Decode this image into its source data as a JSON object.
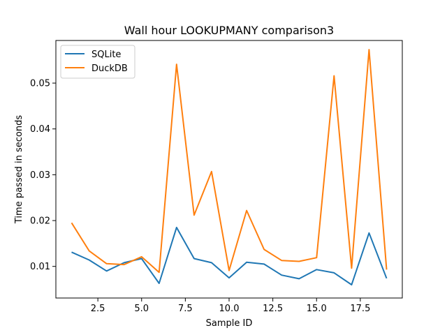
{
  "chart_data": {
    "type": "line",
    "title": "Wall hour LOOKUPMANY comparison3",
    "xlabel": "Sample ID",
    "ylabel": "Time passed in seconds",
    "xlim": [
      0.1,
      19.9
    ],
    "ylim": [
      0.0031,
      0.0593
    ],
    "xticks": [
      2.5,
      5.0,
      7.5,
      10.0,
      12.5,
      15.0,
      17.5
    ],
    "xtick_labels": [
      "2.5",
      "5.0",
      "7.5",
      "10.0",
      "12.5",
      "15.0",
      "17.5"
    ],
    "yticks": [
      0.01,
      0.02,
      0.03,
      0.04,
      0.05
    ],
    "ytick_labels": [
      "0.01",
      "0.02",
      "0.03",
      "0.04",
      "0.05"
    ],
    "grid": false,
    "legend_position": "top-left",
    "x": [
      1,
      2,
      3,
      4,
      5,
      6,
      7,
      8,
      9,
      10,
      11,
      12,
      13,
      14,
      15,
      16,
      17,
      18,
      19
    ],
    "series": [
      {
        "name": "SQLite",
        "color": "#1f77b4",
        "values": [
          0.0131,
          0.0114,
          0.009,
          0.0108,
          0.0117,
          0.0063,
          0.0185,
          0.0117,
          0.0108,
          0.0075,
          0.0109,
          0.0105,
          0.0081,
          0.0073,
          0.0093,
          0.0086,
          0.006,
          0.0173,
          0.0074
        ]
      },
      {
        "name": "DuckDB",
        "color": "#ff7f0e",
        "values": [
          0.0195,
          0.0134,
          0.0106,
          0.0104,
          0.0121,
          0.0087,
          0.0541,
          0.0212,
          0.0307,
          0.0091,
          0.0222,
          0.0137,
          0.0113,
          0.0111,
          0.0119,
          0.0516,
          0.0096,
          0.0573,
          0.0093
        ]
      }
    ]
  }
}
